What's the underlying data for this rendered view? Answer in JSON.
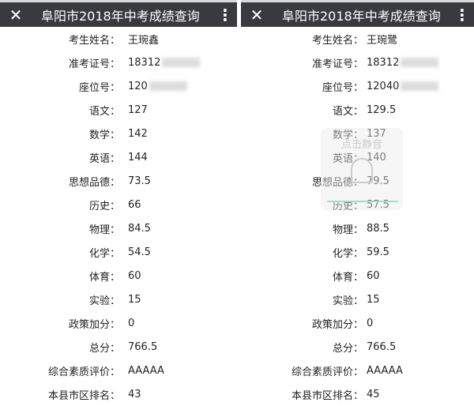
{
  "panels": [
    {
      "title": "阜阳市2018年中考成绩查询",
      "close_icon": "close-icon",
      "more_icon": "more-vertical-icon",
      "rows": [
        {
          "label": "考生姓名：",
          "value": "王琬鑫"
        },
        {
          "label": "准考证号：",
          "value": "18312",
          "blurred": true
        },
        {
          "label": "座位号：",
          "value": "120",
          "blurred": true
        },
        {
          "label": "语文：",
          "value": "127"
        },
        {
          "label": "数学：",
          "value": "142"
        },
        {
          "label": "英语：",
          "value": "144"
        },
        {
          "label": "思想品德：",
          "value": "73.5"
        },
        {
          "label": "历史：",
          "value": "66"
        },
        {
          "label": "物理：",
          "value": "84.5"
        },
        {
          "label": "化学：",
          "value": "54.5"
        },
        {
          "label": "体育：",
          "value": "60"
        },
        {
          "label": "实验：",
          "value": "15"
        },
        {
          "label": "政策加分：",
          "value": "0"
        },
        {
          "label": "总分：",
          "value": "766.5"
        },
        {
          "label": "综合素质评价：",
          "value": "AAAAA"
        },
        {
          "label": "本县市区排名：",
          "value": "43"
        }
      ]
    },
    {
      "title": "阜阳市2018年中考成绩查询",
      "close_icon": "close-icon",
      "more_icon": "more-vertical-icon",
      "overlay_text": "点击静音",
      "rows": [
        {
          "label": "考生姓名：",
          "value": "王琬鹭"
        },
        {
          "label": "准考证号：",
          "value": "18312",
          "blurred": true
        },
        {
          "label": "座位号：",
          "value": "12040",
          "blurred": true
        },
        {
          "label": "语文：",
          "value": "129.5"
        },
        {
          "label": "数学：",
          "value": "137"
        },
        {
          "label": "英语：",
          "value": "140"
        },
        {
          "label": "思想品德：",
          "value": "79.5"
        },
        {
          "label": "历史：",
          "value": "57.5"
        },
        {
          "label": "物理：",
          "value": "88.5"
        },
        {
          "label": "化学：",
          "value": "59.5"
        },
        {
          "label": "体育：",
          "value": "60"
        },
        {
          "label": "实验：",
          "value": "15"
        },
        {
          "label": "政策加分：",
          "value": "0"
        },
        {
          "label": "总分：",
          "value": "766.5"
        },
        {
          "label": "综合素质评价：",
          "value": "AAAAA"
        },
        {
          "label": "本县市区排名：",
          "value": "45"
        }
      ]
    }
  ]
}
